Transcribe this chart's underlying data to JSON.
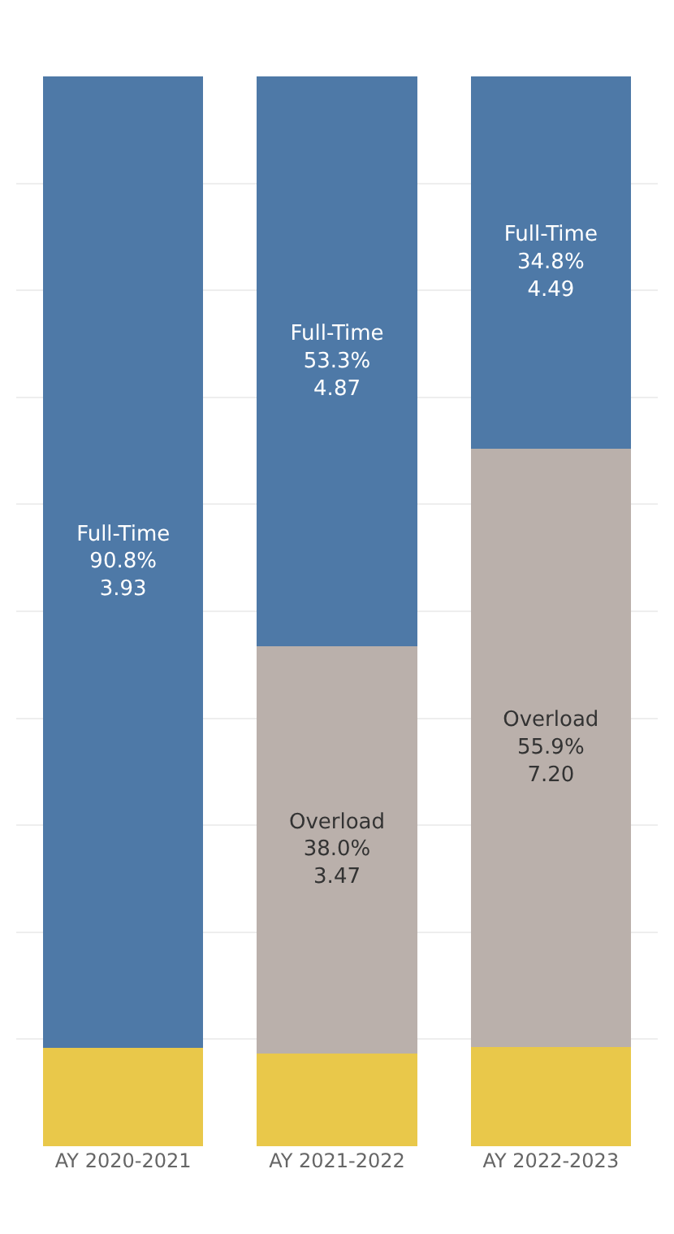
{
  "chart_data": {
    "type": "bar",
    "stacked": true,
    "categories": [
      "AY 2020-2021",
      "AY 2021-2022",
      "AY 2022-2023"
    ],
    "series": [
      {
        "color": "#e9c84a",
        "values": [
          9.2,
          8.7,
          9.3
        ],
        "value_labels": [
          null,
          null,
          null
        ]
      },
      {
        "name": "Overload",
        "color": "#bab0ab",
        "values": [
          null,
          38.0,
          55.9
        ],
        "value_labels": [
          null,
          "38.0%\n3.47",
          "55.9%\n7.20"
        ]
      },
      {
        "name": "Full-Time",
        "color": "#4e79a7",
        "values": [
          90.8,
          53.3,
          34.8
        ],
        "value_labels": [
          "90.8%\n3.93",
          "53.3%\n4.87",
          "34.8%\n4.49"
        ]
      }
    ],
    "ylim": [
      0,
      100
    ],
    "yticks": [
      {
        "value": 10,
        "label": null
      },
      {
        "value": 20,
        "label": null
      },
      {
        "value": 30,
        "label": null
      },
      {
        "value": 40,
        "label": null
      },
      {
        "value": 50,
        "label": null
      },
      {
        "value": 60,
        "label": null
      },
      {
        "value": 70,
        "label": null
      },
      {
        "value": 80,
        "label": null
      },
      {
        "value": 90,
        "label": null
      }
    ],
    "grid": "y",
    "tick_labels": "x",
    "legend": false
  }
}
